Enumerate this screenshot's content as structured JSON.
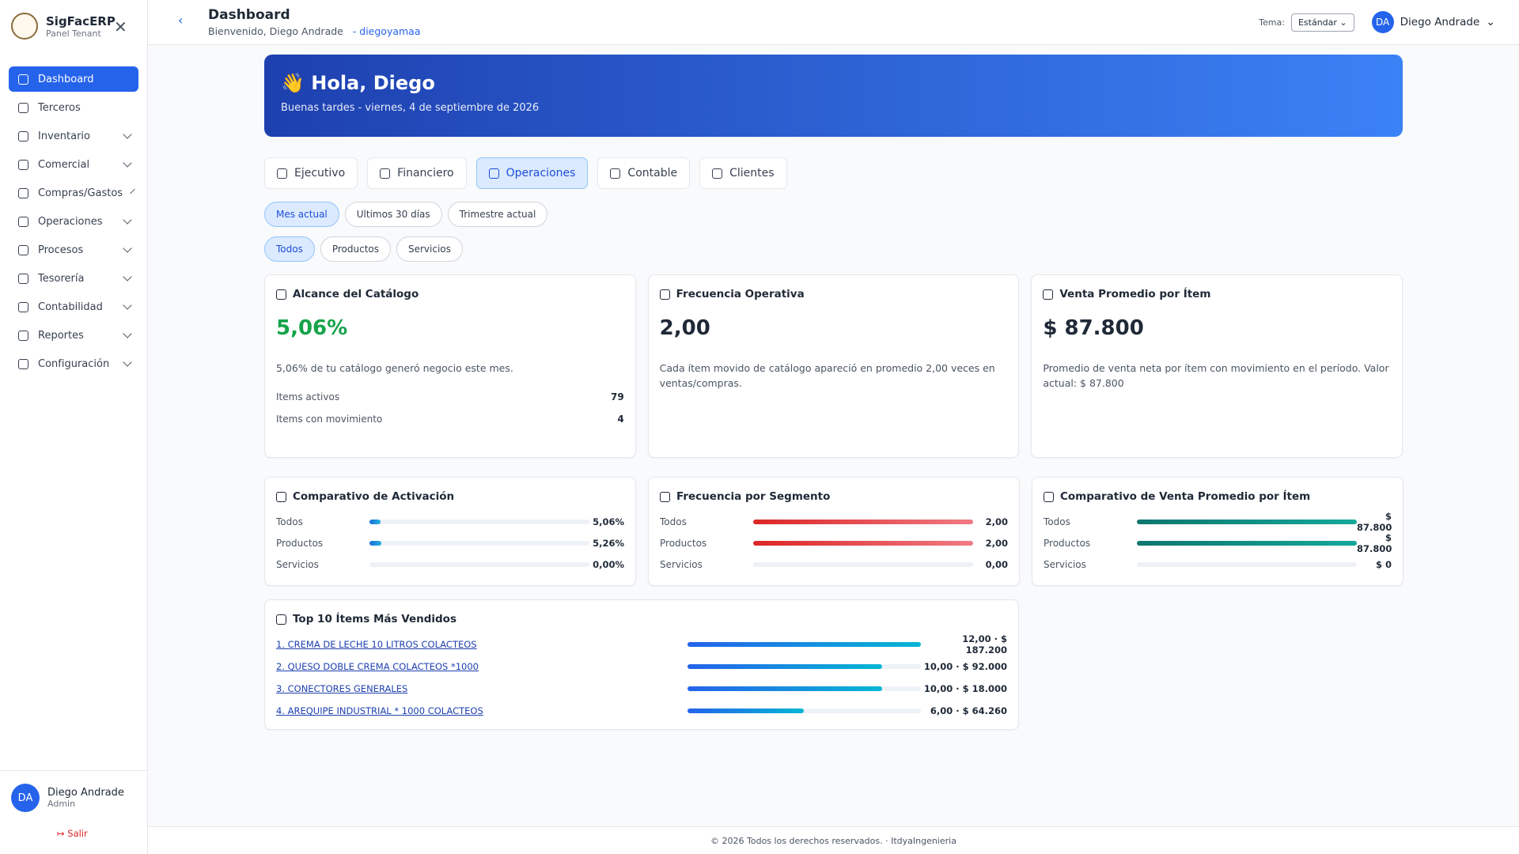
{
  "sidebar": {
    "brand": "SigFacERP",
    "subtitle": "Panel Tenant",
    "active": 0,
    "menu": [
      "Dashboard",
      "Terceros",
      "Inventario",
      "Comercial",
      "Compras/Gastos",
      "Operaciones",
      "Procesos",
      "Tesorería",
      "Contabilidad",
      "Reportes",
      "Configuración"
    ],
    "expandable": [
      false,
      false,
      true,
      true,
      true,
      true,
      true,
      true,
      true,
      true,
      true
    ],
    "user": {
      "initials": "DA",
      "name": "Diego Andrade",
      "role": "Admin"
    },
    "logout": "Salir"
  },
  "header": {
    "title": "Dashboard",
    "welcome": "Bienvenido, Diego Andrade",
    "username": "- diegoyamaa",
    "theme_label": "Tema:",
    "theme": "Estándar",
    "avatar": "DA",
    "user": "Diego Andrade"
  },
  "banner": {
    "title": "👋 Hola, Diego",
    "subtitle": "Buenas tardes - viernes, 4 de septiembre de 2026"
  },
  "tabs": {
    "items": [
      "Ejecutivo",
      "Financiero",
      "Operaciones",
      "Contable",
      "Clientes"
    ],
    "active": 2
  },
  "periods": {
    "items": [
      "Mes actual",
      "Ultimos 30 días",
      "Trimestre actual"
    ],
    "active": 0
  },
  "segments": {
    "items": [
      "Todos",
      "Productos",
      "Servicios"
    ],
    "active": 0
  },
  "kpis": [
    {
      "title": "Alcance del Catálogo",
      "value": "5,06%",
      "description": "5,06% de tu catálogo generó negocio este mes.",
      "rows": [
        {
          "label": "Items activos",
          "value": "79"
        },
        {
          "label": "Items con movimiento",
          "value": "4"
        }
      ]
    },
    {
      "title": "Frecuencia Operativa",
      "value": "2,00",
      "description": "Cada ítem movido de catálogo apareció en promedio 2,00 veces en ventas/compras.",
      "rows": []
    },
    {
      "title": "Venta Promedio por Ítem",
      "value": "$ 87.800",
      "description": "Promedio de venta neta por ítem con movimiento en el período. Valor actual: $ 87.800",
      "rows": []
    }
  ],
  "comparisons": [
    {
      "title": "Comparativo de Activación",
      "color": [
        "#1d6fd8",
        "#22b0e0"
      ],
      "rows": [
        {
          "label": "Todos",
          "value": 5.06,
          "value_label": "5,06%"
        },
        {
          "label": "Productos",
          "value": 5.26,
          "value_label": "5,26%"
        },
        {
          "label": "Servicios",
          "value": 0,
          "value_label": "0,00%"
        }
      ]
    },
    {
      "title": "Frecuencia por Segmento",
      "color": [
        "#dc2626",
        "#f07a84"
      ],
      "rows": [
        {
          "label": "Todos",
          "value": 2,
          "value_label": "2,00"
        },
        {
          "label": "Productos",
          "value": 2,
          "value_label": "2,00"
        },
        {
          "label": "Servicios",
          "value": 0,
          "value_label": "0,00"
        }
      ]
    },
    {
      "title": "Comparativo de Venta Promedio por Ítem",
      "color": [
        "#0f766e",
        "#14a89a"
      ],
      "rows": [
        {
          "label": "Todos",
          "value": 87800,
          "value_label": "$ 87.800"
        },
        {
          "label": "Productos",
          "value": 87800,
          "value_label": "$ 87.800"
        },
        {
          "label": "Servicios",
          "value": 0,
          "value_label": "$ 0"
        }
      ]
    }
  ],
  "top": {
    "title": "Top 10 Ítems Más Vendidos",
    "color": [
      "#2563eb",
      "#06b6d4"
    ],
    "items": [
      {
        "name": "1. CREMA DE LECHE 10 LITROS COLACTEOS",
        "quantity": 12,
        "label": "12,00 · $ 187.200"
      },
      {
        "name": "2. QUESO DOBLE CREMA COLACTEOS *1000",
        "quantity": 10,
        "label": "10,00 · $ 92.000"
      },
      {
        "name": "3. CONECTORES GENERALES",
        "quantity": 10,
        "label": "10,00 · $ 18.000"
      },
      {
        "name": "4. AREQUIPE INDUSTRIAL * 1000 COLACTEOS",
        "quantity": 6,
        "label": "6,00 · $ 64.260"
      }
    ]
  },
  "footer": "© 2026 Todos los derechos reservados. · ItdyaIngenieria"
}
